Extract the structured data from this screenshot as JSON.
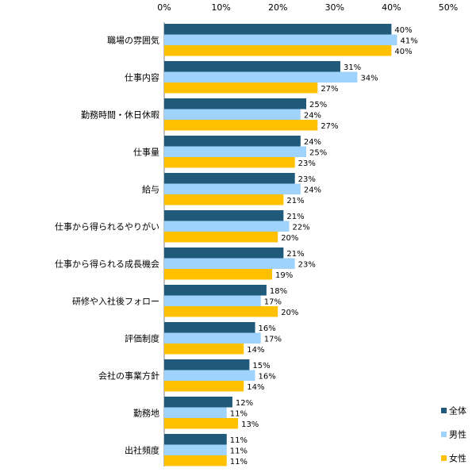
{
  "chart_data": {
    "type": "bar",
    "orientation": "horizontal",
    "categories": [
      "職場の雰囲気",
      "仕事内容",
      "勤務時間・休日休暇",
      "仕事量",
      "給与",
      "仕事から得られるやりがい",
      "仕事から得られる成長機会",
      "研修や入社後フォロー",
      "評価制度",
      "会社の事業方針",
      "勤務地",
      "出社頻度"
    ],
    "series": [
      {
        "name": "全体",
        "color": "#1f5a7a",
        "values": [
          40,
          31,
          25,
          24,
          23,
          21,
          21,
          18,
          16,
          15,
          12,
          11
        ]
      },
      {
        "name": "男性",
        "color": "#9fd3fb",
        "values": [
          41,
          34,
          24,
          25,
          24,
          22,
          23,
          17,
          17,
          16,
          11,
          11
        ]
      },
      {
        "name": "女性",
        "color": "#ffc000",
        "values": [
          40,
          27,
          27,
          23,
          21,
          20,
          19,
          20,
          14,
          14,
          13,
          11
        ]
      }
    ],
    "xlim": [
      0,
      50
    ],
    "xticks": [
      "0%",
      "10%",
      "20%",
      "30%",
      "40%",
      "50%"
    ],
    "value_suffix": "%",
    "legend": "bottom-right",
    "grid": false
  }
}
